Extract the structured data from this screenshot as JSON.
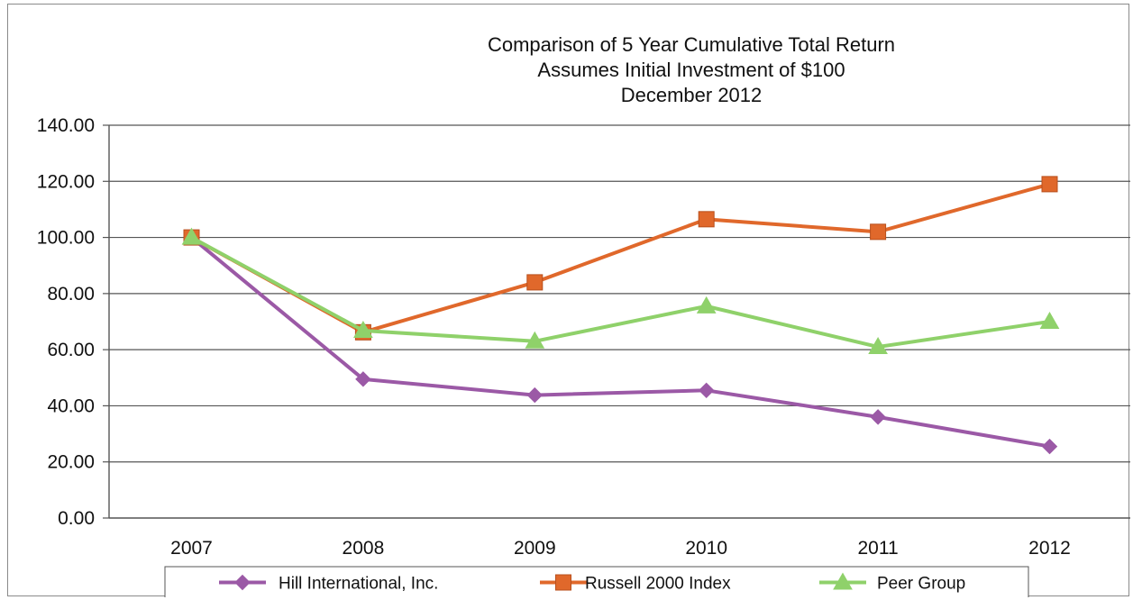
{
  "chart_data": {
    "type": "line",
    "title": [
      "Comparison of 5 Year Cumulative Total Return",
      "Assumes Initial Investment of $100",
      "December 2012"
    ],
    "x": [
      "2007",
      "2008",
      "2009",
      "2010",
      "2011",
      "2012"
    ],
    "ylim": [
      0,
      140
    ],
    "ytick_labels": [
      "0.00",
      "20.00",
      "40.00",
      "60.00",
      "80.00",
      "100.00",
      "120.00",
      "140.00"
    ],
    "grid": true,
    "legend_position": "bottom",
    "series": [
      {
        "name": "Hill International, Inc.",
        "values": [
          100,
          49.5,
          43.8,
          45.5,
          36,
          25.5
        ],
        "color": "#9b59a6",
        "marker": "diamond"
      },
      {
        "name": "Russell 2000 Index",
        "values": [
          100,
          66.2,
          84,
          106.5,
          102,
          119
        ],
        "color": "#e0682b",
        "marker": "square"
      },
      {
        "name": "Peer Group",
        "values": [
          100,
          66.8,
          63,
          75.5,
          61,
          70
        ],
        "color": "#8fd16a",
        "marker": "triangle"
      }
    ]
  }
}
